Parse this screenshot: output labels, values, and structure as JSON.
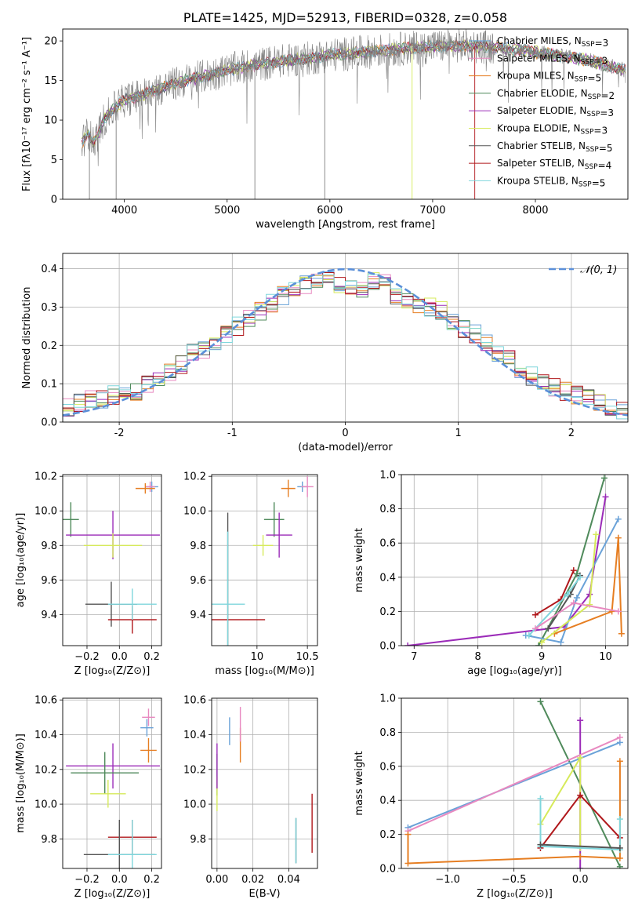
{
  "title": "PLATE=1425, MJD=52913, FIBERID=0328, z=0.058",
  "colors": {
    "chab_miles": "#6aa2d8",
    "salp_miles": "#e889c0",
    "krou_miles": "#e67e22",
    "chab_elodie": "#4f8a5b",
    "salp_elodie": "#9b2bb8",
    "krou_elodie": "#d6ea5a",
    "chab_stelib": "#555555",
    "salp_stelib": "#b0171b",
    "krou_stelib": "#7fd6dc",
    "data": "#808080",
    "normal": "#5b8fd8"
  },
  "chart_data": [
    {
      "id": "spectrum",
      "type": "line",
      "title": "PLATE=1425, MJD=52913, FIBERID=0328, z=0.058",
      "xlabel": "wavelength [Angstrom, rest frame]",
      "ylabel": "Flux [fλ10⁻¹⁷ erg cm⁻² s⁻¹ A⁻¹]",
      "xlim": [
        3400,
        8900
      ],
      "ylim": [
        0,
        21.5
      ],
      "xticks": [
        4000,
        5000,
        6000,
        7000,
        8000
      ],
      "yticks": [
        0,
        5,
        10,
        15,
        20
      ],
      "grid": false,
      "legend_position": "right",
      "continuum": {
        "x": [
          3580,
          3650,
          3700,
          3800,
          3900,
          4000,
          4200,
          4400,
          4600,
          4800,
          5000,
          5200,
          5500,
          5800,
          6000,
          6300,
          6600,
          7000,
          7300,
          7600,
          8000,
          8500,
          8880
        ],
        "y": [
          7,
          8.5,
          7,
          10,
          11.5,
          12.5,
          13.3,
          14.2,
          15,
          15.6,
          16.3,
          16.8,
          17.4,
          17.8,
          18.2,
          18.5,
          18.9,
          19.3,
          19.4,
          19.2,
          18.6,
          17.6,
          16.3
        ]
      },
      "series": [
        {
          "name": "Chabrier MILES, N<sub>SSP</sub>=3"
        },
        {
          "name": "Salpeter MILES, N<sub>SSP</sub>=3"
        },
        {
          "name": "Kroupa MILES, N<sub>SSP</sub>=5"
        },
        {
          "name": "Chabrier ELODIE, N<sub>SSP</sub>=2"
        },
        {
          "name": "Salpeter ELODIE, N<sub>SSP</sub>=3"
        },
        {
          "name": "Kroupa ELODIE, N<sub>SSP</sub>=3"
        },
        {
          "name": "Chabrier STELIB, N<sub>SSP</sub>=5"
        },
        {
          "name": "Salpeter STELIB, N<sub>SSP</sub>=4"
        },
        {
          "name": "Kroupa STELIB, N<sub>SSP</sub>=5"
        }
      ]
    },
    {
      "id": "residuals",
      "type": "histogram",
      "xlabel": "(data-model)/error",
      "ylabel": "Normed distribution",
      "xlim": [
        -2.5,
        2.5
      ],
      "ylim": [
        0,
        0.44
      ],
      "xticks": [
        -2,
        -1,
        0,
        1,
        2
      ],
      "yticks": [
        0.0,
        0.1,
        0.2,
        0.3,
        0.4
      ],
      "grid": true,
      "legend": "𝒩(0, 1)",
      "legend_position": "top-right",
      "bins": [
        -2.5,
        -2.4,
        -2.3,
        -2.2,
        -2.1,
        -2.0,
        -1.9,
        -1.8,
        -1.7,
        -1.6,
        -1.5,
        -1.4,
        -1.3,
        -1.2,
        -1.1,
        -1.0,
        -0.9,
        -0.8,
        -0.7,
        -0.6,
        -0.5,
        -0.4,
        -0.3,
        -0.2,
        -0.1,
        0.0,
        0.1,
        0.2,
        0.3,
        0.4,
        0.5,
        0.6,
        0.7,
        0.8,
        0.9,
        1.0,
        1.1,
        1.2,
        1.3,
        1.4,
        1.5,
        1.6,
        1.7,
        1.8,
        1.9,
        2.0,
        2.1,
        2.2,
        2.3,
        2.4,
        2.5
      ],
      "base_counts": [
        0.04,
        0.05,
        0.06,
        0.06,
        0.07,
        0.07,
        0.08,
        0.1,
        0.11,
        0.13,
        0.15,
        0.18,
        0.19,
        0.2,
        0.23,
        0.25,
        0.27,
        0.29,
        0.31,
        0.33,
        0.35,
        0.36,
        0.37,
        0.37,
        0.36,
        0.35,
        0.35,
        0.37,
        0.36,
        0.33,
        0.32,
        0.3,
        0.3,
        0.29,
        0.26,
        0.24,
        0.23,
        0.21,
        0.18,
        0.17,
        0.14,
        0.12,
        0.1,
        0.09,
        0.08,
        0.07,
        0.06,
        0.05,
        0.04,
        0.03
      ]
    },
    {
      "id": "age_vs_Z",
      "type": "scatter",
      "xlabel": "Z [log₁₀(Z/Z⊙)]",
      "ylabel": "age  [log₁₀(age/yr)]",
      "xlim": [
        -0.35,
        0.26
      ],
      "ylim": [
        9.22,
        10.21
      ],
      "xticks": [
        -0.2,
        0.0,
        0.2
      ],
      "xticklabels": [
        "−0.2",
        "0.0",
        "0.2"
      ],
      "yticks": [
        9.4,
        9.6,
        9.8,
        10.0,
        10.2
      ],
      "grid": true,
      "points": [
        {
          "c": "chab_miles",
          "x": 0.2,
          "y": 10.14,
          "ex": 0.04,
          "ey": 0.03
        },
        {
          "c": "salp_miles",
          "x": 0.19,
          "y": 10.14,
          "ex": 0.03,
          "ey": 0.03
        },
        {
          "c": "krou_miles",
          "x": 0.16,
          "y": 10.13,
          "ex": 0.06,
          "ey": 0.03
        },
        {
          "c": "chab_elodie",
          "x": -0.3,
          "y": 9.95,
          "ex": 0.05,
          "ey": 0.1
        },
        {
          "c": "salp_elodie",
          "x": -0.04,
          "y": 9.86,
          "ex": 0.29,
          "ey": 0.14
        },
        {
          "c": "krou_elodie",
          "x": -0.04,
          "y": 9.8,
          "ex": 0.18,
          "ey": 0.07
        },
        {
          "c": "chab_stelib",
          "x": -0.05,
          "y": 9.46,
          "ex": 0.16,
          "ey": 0.13
        },
        {
          "c": "salp_stelib",
          "x": 0.08,
          "y": 9.37,
          "ex": 0.15,
          "ey": 0.08
        },
        {
          "c": "krou_stelib",
          "x": 0.08,
          "y": 9.46,
          "ex": 0.15,
          "ey": 0.09
        }
      ]
    },
    {
      "id": "age_vs_mass",
      "type": "scatter",
      "xlabel": "mass [log₁₀(M/M⊙)]",
      "ylabel": "",
      "xlim": [
        9.55,
        10.6
      ],
      "ylim": [
        9.22,
        10.21
      ],
      "xticks": [
        10.0,
        10.5
      ],
      "yticks": [
        9.4,
        9.6,
        9.8,
        10.0,
        10.2
      ],
      "grid": true,
      "points": [
        {
          "c": "chab_miles",
          "x": 10.45,
          "y": 10.14,
          "ex": 0.05,
          "ey": 0.03
        },
        {
          "c": "salp_miles",
          "x": 10.5,
          "y": 10.14,
          "ex": 0.06,
          "ey": 0.06
        },
        {
          "c": "krou_miles",
          "x": 10.31,
          "y": 10.13,
          "ex": 0.07,
          "ey": 0.05
        },
        {
          "c": "chab_elodie",
          "x": 10.17,
          "y": 9.95,
          "ex": 0.1,
          "ey": 0.1
        },
        {
          "c": "salp_elodie",
          "x": 10.22,
          "y": 9.86,
          "ex": 0.13,
          "ey": 0.13
        },
        {
          "c": "krou_elodie",
          "x": 10.06,
          "y": 9.8,
          "ex": 0.1,
          "ey": 0.06
        },
        {
          "c": "chab_stelib",
          "x": 9.71,
          "y": 9.46,
          "ex": 0.0,
          "ey": 0.53
        },
        {
          "c": "salp_stelib",
          "x": 9.8,
          "y": 9.37,
          "ex": 0.28,
          "ey": 0.0
        },
        {
          "c": "krou_stelib",
          "x": 9.71,
          "y": 9.46,
          "ex": 0.17,
          "ey": 0.42
        }
      ]
    },
    {
      "id": "weight_vs_age",
      "type": "line",
      "xlabel": "age  [log₁₀(age/yr)]",
      "ylabel": "mass weight",
      "xlim": [
        6.8,
        10.35
      ],
      "ylim": [
        0,
        1.0
      ],
      "xticks": [
        7,
        8,
        9,
        10
      ],
      "yticks": [
        0.0,
        0.2,
        0.4,
        0.6,
        0.8,
        1.0
      ],
      "grid": true,
      "series": [
        {
          "c": "salp_elodie",
          "x": [
            6.9,
            9.35,
            9.75,
            10.0
          ],
          "y": [
            0.0,
            0.11,
            0.3,
            0.87
          ]
        },
        {
          "c": "chab_elodie",
          "x": [
            8.95,
            9.55,
            9.98
          ],
          "y": [
            0.0,
            0.42,
            0.98
          ]
        },
        {
          "c": "chab_miles",
          "x": [
            8.75,
            9.3,
            9.55,
            10.2
          ],
          "y": [
            0.06,
            0.02,
            0.28,
            0.74
          ]
        },
        {
          "c": "krou_miles",
          "x": [
            9.2,
            10.1,
            10.2,
            10.25
          ],
          "y": [
            0.07,
            0.2,
            0.63,
            0.07
          ]
        },
        {
          "c": "krou_elodie",
          "x": [
            9.0,
            9.75,
            9.85
          ],
          "y": [
            0.02,
            0.24,
            0.65
          ]
        },
        {
          "c": "salp_stelib",
          "x": [
            8.9,
            9.3,
            9.5
          ],
          "y": [
            0.18,
            0.27,
            0.44
          ]
        },
        {
          "c": "chab_stelib",
          "x": [
            9.1,
            9.45,
            9.6
          ],
          "y": [
            0.1,
            0.3,
            0.41
          ]
        },
        {
          "c": "krou_stelib",
          "x": [
            8.8,
            9.4,
            9.6
          ],
          "y": [
            0.06,
            0.3,
            0.4
          ]
        },
        {
          "c": "salp_miles",
          "x": [
            8.9,
            9.5,
            10.2
          ],
          "y": [
            0.1,
            0.25,
            0.2
          ]
        }
      ]
    },
    {
      "id": "mass_vs_Z",
      "type": "scatter",
      "xlabel": "Z [log₁₀(Z/Z⊙)]",
      "ylabel": "mass [log₁₀(M/M⊙)]",
      "xlim": [
        -0.35,
        0.26
      ],
      "ylim": [
        9.63,
        10.61
      ],
      "xticks": [
        -0.2,
        0.0,
        0.2
      ],
      "xticklabels": [
        "−0.2",
        "0.0",
        "0.2"
      ],
      "yticks": [
        9.8,
        10.0,
        10.2,
        10.4,
        10.6
      ],
      "grid": true,
      "points": [
        {
          "c": "salp_miles",
          "x": 0.18,
          "y": 10.5,
          "ex": 0.04,
          "ey": 0.05
        },
        {
          "c": "chab_miles",
          "x": 0.17,
          "y": 10.44,
          "ex": 0.04,
          "ey": 0.05
        },
        {
          "c": "krou_miles",
          "x": 0.18,
          "y": 10.31,
          "ex": 0.05,
          "ey": 0.07
        },
        {
          "c": "salp_elodie",
          "x": -0.04,
          "y": 10.22,
          "ex": 0.29,
          "ey": 0.13
        },
        {
          "c": "chab_elodie",
          "x": -0.09,
          "y": 10.18,
          "ex": 0.21,
          "ey": 0.12
        },
        {
          "c": "krou_elodie",
          "x": -0.07,
          "y": 10.06,
          "ex": 0.11,
          "ey": 0.08
        },
        {
          "c": "salp_stelib",
          "x": 0.08,
          "y": 9.81,
          "ex": 0.15,
          "ey": 0.1
        },
        {
          "c": "chab_stelib",
          "x": 0.0,
          "y": 9.71,
          "ex": 0.22,
          "ey": 0.2
        },
        {
          "c": "krou_stelib",
          "x": 0.08,
          "y": 9.71,
          "ex": 0.15,
          "ey": 0.2
        }
      ]
    },
    {
      "id": "mass_vs_ebv",
      "type": "scatter",
      "xlabel": "E(B-V)",
      "ylabel": "",
      "xlim": [
        -0.003,
        0.056
      ],
      "ylim": [
        9.63,
        10.61
      ],
      "xticks": [
        0.0,
        0.02,
        0.04
      ],
      "xticklabels": [
        "0.00",
        "0.02",
        "0.04"
      ],
      "yticks": [
        9.8,
        10.0,
        10.2,
        10.4,
        10.6
      ],
      "grid": true,
      "points": [
        {
          "c": "chab_elodie",
          "x": 0.0,
          "y": 10.17,
          "ex": 0.0,
          "ey": 0.12
        },
        {
          "c": "krou_elodie",
          "x": 0.0,
          "y": 10.06,
          "ex": 0.0,
          "ey": 0.1
        },
        {
          "c": "salp_elodie",
          "x": 0.0,
          "y": 10.22,
          "ex": 0.0,
          "ey": 0.13
        },
        {
          "c": "chab_miles",
          "x": 0.007,
          "y": 10.42,
          "ex": 0.0,
          "ey": 0.08
        },
        {
          "c": "krou_miles",
          "x": 0.013,
          "y": 10.34,
          "ex": 0.0,
          "ey": 0.1
        },
        {
          "c": "salp_miles",
          "x": 0.013,
          "y": 10.46,
          "ex": 0.0,
          "ey": 0.1
        },
        {
          "c": "chab_stelib",
          "x": 0.044,
          "y": 9.79,
          "ex": 0.0,
          "ey": 0.13
        },
        {
          "c": "krou_stelib",
          "x": 0.044,
          "y": 9.79,
          "ex": 0.0,
          "ey": 0.13
        },
        {
          "c": "salp_stelib",
          "x": 0.053,
          "y": 9.89,
          "ex": 0.0,
          "ey": 0.17
        }
      ]
    },
    {
      "id": "weight_vs_Z",
      "type": "line",
      "xlabel": "Z [log₁₀(Z/Z⊙)]",
      "ylabel": "mass weight",
      "xlim": [
        -1.35,
        0.36
      ],
      "ylim": [
        0,
        1.0
      ],
      "xticks": [
        -1.0,
        -0.5,
        0.0
      ],
      "xticklabels": [
        "−1.0",
        "−0.5",
        "0.0"
      ],
      "yticks": [
        0.0,
        0.2,
        0.4,
        0.6,
        0.8,
        1.0
      ],
      "grid": true,
      "series": [
        {
          "c": "chab_elodie",
          "x": [
            -0.3,
            0.3
          ],
          "y": [
            0.98,
            0.01
          ]
        },
        {
          "c": "salp_elodie",
          "x": [
            0.0,
            0.0
          ],
          "y": [
            0.87,
            0.0
          ]
        },
        {
          "c": "chab_miles",
          "x": [
            -1.3,
            0.3
          ],
          "y": [
            0.24,
            0.74
          ]
        },
        {
          "c": "salp_miles",
          "x": [
            -1.3,
            0.3
          ],
          "y": [
            0.22,
            0.77
          ]
        },
        {
          "c": "krou_miles",
          "x": [
            -1.3,
            -1.3,
            0.0,
            0.3,
            0.3
          ],
          "y": [
            0.2,
            0.03,
            0.07,
            0.06,
            0.63
          ]
        },
        {
          "c": "krou_elodie",
          "x": [
            -0.3,
            0.0,
            0.0
          ],
          "y": [
            0.26,
            0.65,
            0.12
          ]
        },
        {
          "c": "salp_stelib",
          "x": [
            -0.3,
            0.0,
            0.3
          ],
          "y": [
            0.12,
            0.43,
            0.18
          ]
        },
        {
          "c": "krou_stelib",
          "x": [
            -0.3,
            -0.3,
            0.3,
            0.3
          ],
          "y": [
            0.41,
            0.13,
            0.11,
            0.29
          ]
        },
        {
          "c": "chab_stelib",
          "x": [
            -0.3,
            0.3
          ],
          "y": [
            0.14,
            0.12
          ]
        }
      ]
    }
  ]
}
